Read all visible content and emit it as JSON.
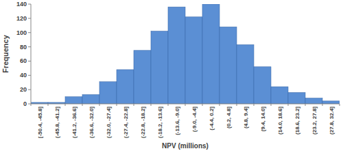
{
  "chart_data": {
    "type": "bar",
    "x_label": "NPV (millions)",
    "y_label": "Frequency",
    "categories": [
      "[-50.4, -45.8]",
      "(-45.8, -41.2]",
      "(-41.2, -36.6]",
      "(-36.6, -32.0]",
      "(-32.0, -27.4]",
      "(-27.4, -22.8]",
      "(-22.8, -18.2]",
      "(-18.2, -13.6]",
      "(-13.6, -9.0]",
      "(-9.0, -4.4]",
      "(-4.4, 0.2]",
      "(0.2, 4.8]",
      "(4.8, 9.4]",
      "(9.4, 14.0]",
      "(14.0, 18.6]",
      "(18.6, 23.2]",
      "(23.2, 27.8]",
      "(27.8, 32.4]"
    ],
    "values": [
      2,
      2,
      10,
      13,
      31,
      48,
      75,
      102,
      136,
      122,
      140,
      108,
      83,
      52,
      24,
      16,
      8,
      4
    ],
    "color": "#5b8fd4",
    "ylim": [
      0,
      140
    ],
    "yticks": [
      0,
      20,
      40,
      60,
      80,
      100,
      120,
      140
    ],
    "grid": false
  }
}
